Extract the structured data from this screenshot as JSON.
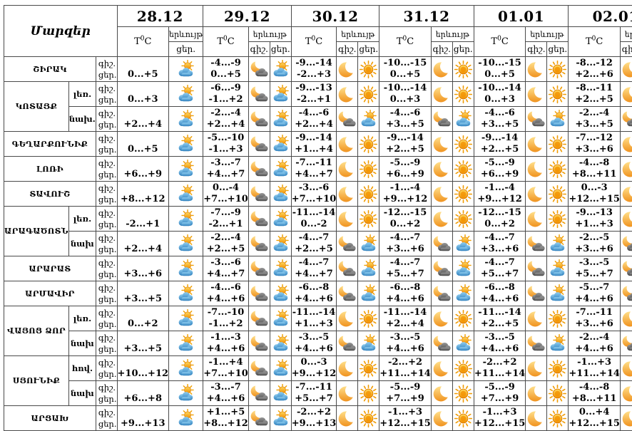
{
  "header": {
    "regions_label": "Մարզեր",
    "temp_prefix": "T",
    "temp_sup": "0",
    "temp_suffix": "C",
    "phenomenon_label": "երևույթ",
    "night_label": "գիշ.",
    "day_label": "ցեր.",
    "dates": [
      "28.12",
      "29.12",
      "30.12",
      "31.12",
      "01.01",
      "02.01"
    ]
  },
  "icon_legend": {
    "sun": "clear-day-sun-icon",
    "moon": "clear-night-moon-icon",
    "sun-cloud": "partly-cloudy-day-icon",
    "moon-cloud": "partly-cloudy-night-icon"
  },
  "colors": {
    "sun": "#f5a11c",
    "cloud_day": "#3f93cf",
    "cloud_night": "#5a5a5a",
    "grid_border": "#4a4a4a"
  },
  "regions": [
    {
      "name": "ՇԻՐԱԿ",
      "zones": [
        {
          "zone": null,
          "cells": [
            {
              "day_temp": "0...+5",
              "day_icon": "sun-cloud"
            },
            {
              "night_temp": "-4...-9",
              "day_temp": "0...+5",
              "night_icon": "moon-cloud",
              "day_icon": "sun-cloud"
            },
            {
              "night_temp": "-9...-14",
              "day_temp": "-2...+3",
              "night_icon": "moon",
              "day_icon": "sun"
            },
            {
              "night_temp": "-10...-15",
              "day_temp": "0...+5",
              "night_icon": "moon",
              "day_icon": "sun"
            },
            {
              "night_temp": "-10...-15",
              "day_temp": "0...+5",
              "night_icon": "moon",
              "day_icon": "sun"
            },
            {
              "night_temp": "-8...-12",
              "day_temp": "+2...+6",
              "night_icon": "moon",
              "day_icon": "sun"
            }
          ]
        }
      ]
    },
    {
      "name": "ԿՈՏԱՅՔ",
      "zones": [
        {
          "zone": "լեռ.",
          "cells": [
            {
              "day_temp": "0...+3",
              "day_icon": "sun-cloud"
            },
            {
              "night_temp": "-6...-9",
              "day_temp": "-1...+2",
              "night_icon": "moon-cloud",
              "day_icon": "sun-cloud"
            },
            {
              "night_temp": "-9...-13",
              "day_temp": "-2...+1",
              "night_icon": "moon",
              "day_icon": "sun"
            },
            {
              "night_temp": "-10...-14",
              "day_temp": "0...+3",
              "night_icon": "moon",
              "day_icon": "sun"
            },
            {
              "night_temp": "-10...-14",
              "day_temp": "0...+3",
              "night_icon": "moon",
              "day_icon": "sun"
            },
            {
              "night_temp": "-8...-11",
              "day_temp": "+2...+5",
              "night_icon": "moon",
              "day_icon": "sun"
            }
          ]
        },
        {
          "zone": "նախ.",
          "cells": [
            {
              "day_temp": "+2...+4",
              "day_icon": "sun-cloud"
            },
            {
              "night_temp": "-2...-4",
              "day_temp": "+2...+4",
              "night_icon": "moon-cloud",
              "day_icon": "sun-cloud"
            },
            {
              "night_temp": "-4...-6",
              "day_temp": "+2...+4",
              "night_icon": "moon-cloud",
              "day_icon": "sun-cloud"
            },
            {
              "night_temp": "-4...-6",
              "day_temp": "+3...+5",
              "night_icon": "moon-cloud",
              "day_icon": "sun-cloud"
            },
            {
              "night_temp": "-4...-6",
              "day_temp": "+3...+5",
              "night_icon": "moon-cloud",
              "day_icon": "sun-cloud"
            },
            {
              "night_temp": "-2...-4",
              "day_temp": "+3...+5",
              "night_icon": "moon-cloud",
              "day_icon": "sun-cloud"
            }
          ]
        }
      ]
    },
    {
      "name": "ԳԵՂԱՐՔՈՒՆԻՔ",
      "zones": [
        {
          "zone": null,
          "cells": [
            {
              "day_temp": "0...+5",
              "day_icon": "sun-cloud"
            },
            {
              "night_temp": "-5...-10",
              "day_temp": "-1...+3",
              "night_icon": "moon-cloud",
              "day_icon": "sun-cloud"
            },
            {
              "night_temp": "-9...-14",
              "day_temp": "+1...+4",
              "night_icon": "moon",
              "day_icon": "sun"
            },
            {
              "night_temp": "-9...-14",
              "day_temp": "+2...+5",
              "night_icon": "moon",
              "day_icon": "sun"
            },
            {
              "night_temp": "-9...-14",
              "day_temp": "+2...+5",
              "night_icon": "moon",
              "day_icon": "sun"
            },
            {
              "night_temp": "-7...-12",
              "day_temp": "+3...+6",
              "night_icon": "moon",
              "day_icon": "sun"
            }
          ]
        }
      ]
    },
    {
      "name": "ԼՈՌԻ",
      "zones": [
        {
          "zone": null,
          "cells": [
            {
              "day_temp": "+6...+9",
              "day_icon": "sun-cloud"
            },
            {
              "night_temp": "-3...-7",
              "day_temp": "+4...+7",
              "night_icon": "moon-cloud",
              "day_icon": "sun-cloud"
            },
            {
              "night_temp": "-7...-11",
              "day_temp": "+4...+7",
              "night_icon": "moon",
              "day_icon": "sun"
            },
            {
              "night_temp": "-5...-9",
              "day_temp": "+6...+9",
              "night_icon": "moon",
              "day_icon": "sun"
            },
            {
              "night_temp": "-5...-9",
              "day_temp": "+6...+9",
              "night_icon": "moon",
              "day_icon": "sun"
            },
            {
              "night_temp": "-4...-8",
              "day_temp": "+8...+11",
              "night_icon": "moon",
              "day_icon": "sun"
            }
          ]
        }
      ]
    },
    {
      "name": "ՏԱՎՈՒՇ",
      "zones": [
        {
          "zone": null,
          "cells": [
            {
              "day_temp": "+8...+12",
              "day_icon": "sun-cloud"
            },
            {
              "night_temp": "0...-4",
              "day_temp": "+7...+10",
              "night_icon": "moon-cloud",
              "day_icon": "sun-cloud"
            },
            {
              "night_temp": "-3...-6",
              "day_temp": "+7...+10",
              "night_icon": "moon",
              "day_icon": "sun"
            },
            {
              "night_temp": "-1...-4",
              "day_temp": "+9...+12",
              "night_icon": "moon",
              "day_icon": "sun"
            },
            {
              "night_temp": "-1...-4",
              "day_temp": "+9...+12",
              "night_icon": "moon",
              "day_icon": "sun"
            },
            {
              "night_temp": "0...-3",
              "day_temp": "+12...+15",
              "night_icon": "moon",
              "day_icon": "sun"
            }
          ]
        }
      ]
    },
    {
      "name": "ԱՐԱԳԱԾՈՏՆ",
      "zones": [
        {
          "zone": "լեռ.",
          "cells": [
            {
              "day_temp": "-2...+1",
              "day_icon": "sun-cloud"
            },
            {
              "night_temp": "-7...-9",
              "day_temp": "-2...+1",
              "night_icon": "moon-cloud",
              "day_icon": "sun-cloud"
            },
            {
              "night_temp": "-11...-14",
              "day_temp": "0...-2",
              "night_icon": "moon",
              "day_icon": "sun"
            },
            {
              "night_temp": "-12...-15",
              "day_temp": "0...+2",
              "night_icon": "moon",
              "day_icon": "sun"
            },
            {
              "night_temp": "-12...-15",
              "day_temp": "0...+2",
              "night_icon": "moon",
              "day_icon": "sun"
            },
            {
              "night_temp": "-9...-13",
              "day_temp": "+1...+3",
              "night_icon": "moon",
              "day_icon": "sun"
            }
          ]
        },
        {
          "zone": "նախ",
          "cells": [
            {
              "day_temp": "+2...+4",
              "day_icon": "sun-cloud"
            },
            {
              "night_temp": "-2...-4",
              "day_temp": "+2...+5",
              "night_icon": "moon-cloud",
              "day_icon": "sun-cloud"
            },
            {
              "night_temp": "-4...-7",
              "day_temp": "+2...+5",
              "night_icon": "moon-cloud",
              "day_icon": "sun-cloud"
            },
            {
              "night_temp": "-4...-7",
              "day_temp": "+3...+6",
              "night_icon": "moon-cloud",
              "day_icon": "sun-cloud"
            },
            {
              "night_temp": "-4...-7",
              "day_temp": "+3...+6",
              "night_icon": "moon-cloud",
              "day_icon": "sun-cloud"
            },
            {
              "night_temp": "-2...-5",
              "day_temp": "+3...+6",
              "night_icon": "moon-cloud",
              "day_icon": "sun-cloud"
            }
          ]
        }
      ]
    },
    {
      "name": "ԱՐԱՐԱՏ",
      "zones": [
        {
          "zone": null,
          "cells": [
            {
              "day_temp": "+3...+6",
              "day_icon": "sun-cloud"
            },
            {
              "night_temp": "-3...-6",
              "day_temp": "+4...+7",
              "night_icon": "moon-cloud",
              "day_icon": "sun-cloud"
            },
            {
              "night_temp": "-4...-7",
              "day_temp": "+4...+7",
              "night_icon": "moon-cloud",
              "day_icon": "sun-cloud"
            },
            {
              "night_temp": "-4...-7",
              "day_temp": "+5...+7",
              "night_icon": "moon-cloud",
              "day_icon": "sun-cloud"
            },
            {
              "night_temp": "-4...-7",
              "day_temp": "+5...+7",
              "night_icon": "moon-cloud",
              "day_icon": "sun-cloud"
            },
            {
              "night_temp": "-3...-5",
              "day_temp": "+5...+7",
              "night_icon": "moon-cloud",
              "day_icon": "sun-cloud"
            }
          ]
        }
      ]
    },
    {
      "name": "ԱՐՄԱՎԻՐ",
      "zones": [
        {
          "zone": null,
          "cells": [
            {
              "day_temp": "+3...+5",
              "day_icon": "sun-cloud"
            },
            {
              "night_temp": "-4...-6",
              "day_temp": "+4...+6",
              "night_icon": "moon-cloud",
              "day_icon": "sun-cloud"
            },
            {
              "night_temp": "-6...-8",
              "day_temp": "+4...+6",
              "night_icon": "moon-cloud",
              "day_icon": "sun-cloud"
            },
            {
              "night_temp": "-6...-8",
              "day_temp": "+4...+6",
              "night_icon": "moon-cloud",
              "day_icon": "sun-cloud"
            },
            {
              "night_temp": "-6...-8",
              "day_temp": "+4...+6",
              "night_icon": "moon-cloud",
              "day_icon": "sun-cloud"
            },
            {
              "night_temp": "-5...-7",
              "day_temp": "+4...+6",
              "night_icon": "moon-cloud",
              "day_icon": "sun-cloud"
            }
          ]
        }
      ]
    },
    {
      "name": "ՎԱՅՈՑ ՁՈՐ",
      "zones": [
        {
          "zone": "լեռ.",
          "cells": [
            {
              "day_temp": "0...+2",
              "day_icon": "sun-cloud"
            },
            {
              "night_temp": "-7...-10",
              "day_temp": "-1...+2",
              "night_icon": "moon-cloud",
              "day_icon": "sun-cloud"
            },
            {
              "night_temp": "-11...-14",
              "day_temp": "+1...+3",
              "night_icon": "moon",
              "day_icon": "sun"
            },
            {
              "night_temp": "-11...-14",
              "day_temp": "+2...+4",
              "night_icon": "moon",
              "day_icon": "sun"
            },
            {
              "night_temp": "-11...-14",
              "day_temp": "+2...+5",
              "night_icon": "moon",
              "day_icon": "sun"
            },
            {
              "night_temp": "-7...-11",
              "day_temp": "+3...+6",
              "night_icon": "moon",
              "day_icon": "sun"
            }
          ]
        },
        {
          "zone": "նախ",
          "cells": [
            {
              "day_temp": "+3...+5",
              "day_icon": "sun-cloud"
            },
            {
              "night_temp": "-1...-3",
              "day_temp": "+4...+6",
              "night_icon": "moon-cloud",
              "day_icon": "sun-cloud"
            },
            {
              "night_temp": "-3...-5",
              "day_temp": "+4...+6",
              "night_icon": "moon-cloud",
              "day_icon": "sun-cloud"
            },
            {
              "night_temp": "-3...-5",
              "day_temp": "+4...+6",
              "night_icon": "moon-cloud",
              "day_icon": "sun-cloud"
            },
            {
              "night_temp": "-3...-5",
              "day_temp": "+4...+6",
              "night_icon": "moon-cloud",
              "day_icon": "sun-cloud"
            },
            {
              "night_temp": "-2...-4",
              "day_temp": "+4...+6",
              "night_icon": "moon-cloud",
              "day_icon": "sun-cloud"
            }
          ]
        }
      ]
    },
    {
      "name": "ՍՅՈՒՆԻՔ",
      "zones": [
        {
          "zone": "հով.",
          "cells": [
            {
              "day_temp": "+10...+12",
              "day_icon": "sun-cloud"
            },
            {
              "night_temp": "-1...+4",
              "day_temp": "+7...+10",
              "night_icon": "moon-cloud",
              "day_icon": "sun-cloud"
            },
            {
              "night_temp": "0...-3",
              "day_temp": "+9...+12",
              "night_icon": "moon",
              "day_icon": "sun"
            },
            {
              "night_temp": "-2...+2",
              "day_temp": "+11...+14",
              "night_icon": "moon",
              "day_icon": "sun"
            },
            {
              "night_temp": "-2...+2",
              "day_temp": "+11...+14",
              "night_icon": "moon",
              "day_icon": "sun"
            },
            {
              "night_temp": "-1...+3",
              "day_temp": "+11...+14",
              "night_icon": "moon",
              "day_icon": "sun"
            }
          ]
        },
        {
          "zone": "նախ",
          "cells": [
            {
              "day_temp": "+6...+8",
              "day_icon": "sun-cloud"
            },
            {
              "night_temp": "-3...-7",
              "day_temp": "+4...+6",
              "night_icon": "moon-cloud",
              "day_icon": "sun-cloud"
            },
            {
              "night_temp": "-7...-11",
              "day_temp": "+5...+7",
              "night_icon": "moon",
              "day_icon": "sun"
            },
            {
              "night_temp": "-5...-9",
              "day_temp": "+7...+9",
              "night_icon": "moon",
              "day_icon": "sun"
            },
            {
              "night_temp": "-5...-9",
              "day_temp": "+7...+9",
              "night_icon": "moon",
              "day_icon": "sun"
            },
            {
              "night_temp": "-4...-8",
              "day_temp": "+8...+11",
              "night_icon": "moon",
              "day_icon": "sun"
            }
          ]
        }
      ]
    },
    {
      "name": "ԱՐՑԱԽ",
      "zones": [
        {
          "zone": null,
          "cells": [
            {
              "day_temp": "+9...+13",
              "day_icon": "sun-cloud"
            },
            {
              "night_temp": "+1...+5",
              "day_temp": "+8...+12",
              "night_icon": "moon-cloud",
              "day_icon": "sun-cloud"
            },
            {
              "night_temp": "-2...+2",
              "day_temp": "+9...+13",
              "night_icon": "moon",
              "day_icon": "sun"
            },
            {
              "night_temp": "-1...+3",
              "day_temp": "+12...+15",
              "night_icon": "moon",
              "day_icon": "sun"
            },
            {
              "night_temp": "-1...+3",
              "day_temp": "+12...+15",
              "night_icon": "moon",
              "day_icon": "sun"
            },
            {
              "night_temp": "0...+4",
              "day_temp": "+12...+15",
              "night_icon": "moon",
              "day_icon": "sun"
            }
          ]
        }
      ]
    }
  ]
}
